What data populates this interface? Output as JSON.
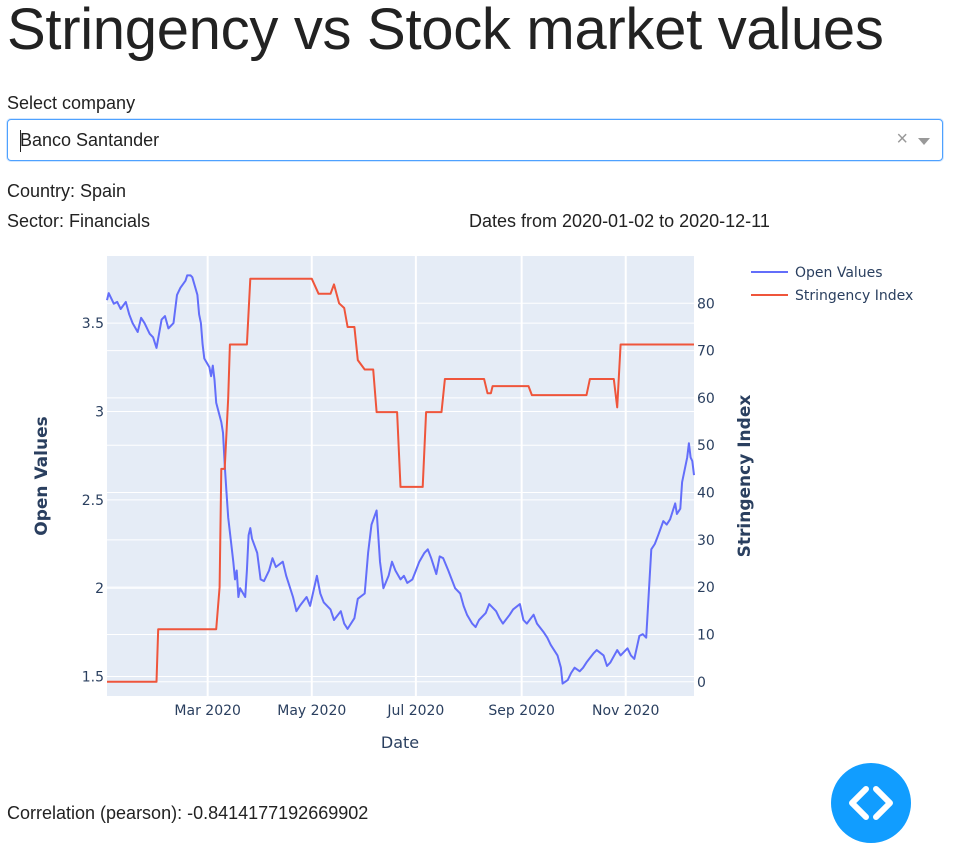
{
  "page": {
    "title": "Stringency vs Stock market values",
    "select_label": "Select company",
    "selected_company": "Banco Santander",
    "clear_glyph": "×",
    "country_line": "Country: Spain",
    "sector_line": "Sector: Financials",
    "dates_line": "Dates from 2020-01-02 to 2020-12-11",
    "correlation_line": "Correlation (pearson): -0.8414177192669902",
    "icons": {
      "clear": "clear-x-icon",
      "dropdown": "chevron-down-icon",
      "debug": "code-brackets-icon"
    },
    "colors": {
      "accent": "#119dff",
      "open_values": "#636efa",
      "stringency": "#ef553b",
      "plot_bg": "#e5ecf6"
    }
  },
  "chart_data": {
    "type": "line",
    "xlabel": "Date",
    "ylabel": "Open Values",
    "y2label": "Stringency Index",
    "x_range": [
      "2020-01-02",
      "2020-12-11"
    ],
    "x_ticks": [
      {
        "date": "2020-03-01",
        "label": "Mar 2020"
      },
      {
        "date": "2020-05-01",
        "label": "May 2020"
      },
      {
        "date": "2020-07-01",
        "label": "Jul 2020"
      },
      {
        "date": "2020-09-01",
        "label": "Sep 2020"
      },
      {
        "date": "2020-11-01",
        "label": "Nov 2020"
      }
    ],
    "ylim": [
      1.39,
      3.88
    ],
    "y_ticks": [
      {
        "value": 1.5,
        "label": "1.5"
      },
      {
        "value": 2,
        "label": "2"
      },
      {
        "value": 2.5,
        "label": "2.5"
      },
      {
        "value": 3,
        "label": "3"
      },
      {
        "value": 3.5,
        "label": "3.5"
      }
    ],
    "y2lim": [
      -3,
      90
    ],
    "y2_ticks": [
      {
        "value": 0,
        "label": "0"
      },
      {
        "value": 10,
        "label": "10"
      },
      {
        "value": 20,
        "label": "20"
      },
      {
        "value": 30,
        "label": "30"
      },
      {
        "value": 40,
        "label": "40"
      },
      {
        "value": 50,
        "label": "50"
      },
      {
        "value": 60,
        "label": "60"
      },
      {
        "value": 70,
        "label": "70"
      },
      {
        "value": 80,
        "label": "80"
      }
    ],
    "grid": true,
    "legend_position": "top-right",
    "series": [
      {
        "name": "Open Values",
        "axis": "y",
        "color": "#636efa",
        "points": [
          [
            "2020-01-02",
            3.63
          ],
          [
            "2020-01-03",
            3.67
          ],
          [
            "2020-01-06",
            3.61
          ],
          [
            "2020-01-08",
            3.62
          ],
          [
            "2020-01-10",
            3.58
          ],
          [
            "2020-01-13",
            3.62
          ],
          [
            "2020-01-15",
            3.55
          ],
          [
            "2020-01-17",
            3.5
          ],
          [
            "2020-01-20",
            3.45
          ],
          [
            "2020-01-22",
            3.53
          ],
          [
            "2020-01-24",
            3.5
          ],
          [
            "2020-01-27",
            3.44
          ],
          [
            "2020-01-29",
            3.42
          ],
          [
            "2020-01-31",
            3.36
          ],
          [
            "2020-02-03",
            3.52
          ],
          [
            "2020-02-05",
            3.54
          ],
          [
            "2020-02-07",
            3.47
          ],
          [
            "2020-02-10",
            3.5
          ],
          [
            "2020-02-12",
            3.66
          ],
          [
            "2020-02-14",
            3.7
          ],
          [
            "2020-02-17",
            3.74
          ],
          [
            "2020-02-18",
            3.77
          ],
          [
            "2020-02-20",
            3.77
          ],
          [
            "2020-02-21",
            3.76
          ],
          [
            "2020-02-24",
            3.66
          ],
          [
            "2020-02-25",
            3.55
          ],
          [
            "2020-02-26",
            3.5
          ],
          [
            "2020-02-27",
            3.38
          ],
          [
            "2020-02-28",
            3.3
          ],
          [
            "2020-03-02",
            3.25
          ],
          [
            "2020-03-03",
            3.2
          ],
          [
            "2020-03-04",
            3.26
          ],
          [
            "2020-03-05",
            3.18
          ],
          [
            "2020-03-06",
            3.05
          ],
          [
            "2020-03-09",
            2.94
          ],
          [
            "2020-03-10",
            2.88
          ],
          [
            "2020-03-11",
            2.7
          ],
          [
            "2020-03-12",
            2.55
          ],
          [
            "2020-03-13",
            2.4
          ],
          [
            "2020-03-16",
            2.15
          ],
          [
            "2020-03-17",
            2.05
          ],
          [
            "2020-03-18",
            2.1
          ],
          [
            "2020-03-19",
            1.95
          ],
          [
            "2020-03-20",
            2.0
          ],
          [
            "2020-03-23",
            1.95
          ],
          [
            "2020-03-24",
            2.1
          ],
          [
            "2020-03-25",
            2.3
          ],
          [
            "2020-03-26",
            2.34
          ],
          [
            "2020-03-27",
            2.28
          ],
          [
            "2020-03-30",
            2.2
          ],
          [
            "2020-04-01",
            2.05
          ],
          [
            "2020-04-03",
            2.04
          ],
          [
            "2020-04-06",
            2.1
          ],
          [
            "2020-04-08",
            2.17
          ],
          [
            "2020-04-10",
            2.12
          ],
          [
            "2020-04-14",
            2.15
          ],
          [
            "2020-04-16",
            2.07
          ],
          [
            "2020-04-17",
            2.04
          ],
          [
            "2020-04-20",
            1.95
          ],
          [
            "2020-04-22",
            1.87
          ],
          [
            "2020-04-24",
            1.9
          ],
          [
            "2020-04-28",
            1.95
          ],
          [
            "2020-04-30",
            1.9
          ],
          [
            "2020-05-04",
            2.07
          ],
          [
            "2020-05-06",
            1.97
          ],
          [
            "2020-05-08",
            1.92
          ],
          [
            "2020-05-12",
            1.88
          ],
          [
            "2020-05-14",
            1.82
          ],
          [
            "2020-05-18",
            1.87
          ],
          [
            "2020-05-20",
            1.8
          ],
          [
            "2020-05-22",
            1.77
          ],
          [
            "2020-05-26",
            1.83
          ],
          [
            "2020-05-28",
            1.94
          ],
          [
            "2020-06-01",
            1.97
          ],
          [
            "2020-06-03",
            2.2
          ],
          [
            "2020-06-05",
            2.36
          ],
          [
            "2020-06-08",
            2.44
          ],
          [
            "2020-06-10",
            2.15
          ],
          [
            "2020-06-12",
            2.0
          ],
          [
            "2020-06-15",
            2.07
          ],
          [
            "2020-06-17",
            2.15
          ],
          [
            "2020-06-19",
            2.1
          ],
          [
            "2020-06-22",
            2.05
          ],
          [
            "2020-06-24",
            2.07
          ],
          [
            "2020-06-26",
            2.03
          ],
          [
            "2020-06-29",
            2.05
          ],
          [
            "2020-07-01",
            2.1
          ],
          [
            "2020-07-03",
            2.15
          ],
          [
            "2020-07-06",
            2.2
          ],
          [
            "2020-07-08",
            2.22
          ],
          [
            "2020-07-10",
            2.17
          ],
          [
            "2020-07-13",
            2.08
          ],
          [
            "2020-07-15",
            2.18
          ],
          [
            "2020-07-17",
            2.17
          ],
          [
            "2020-07-20",
            2.1
          ],
          [
            "2020-07-22",
            2.05
          ],
          [
            "2020-07-24",
            2.0
          ],
          [
            "2020-07-27",
            1.97
          ],
          [
            "2020-07-29",
            1.9
          ],
          [
            "2020-07-31",
            1.85
          ],
          [
            "2020-08-03",
            1.8
          ],
          [
            "2020-08-05",
            1.78
          ],
          [
            "2020-08-07",
            1.82
          ],
          [
            "2020-08-11",
            1.86
          ],
          [
            "2020-08-13",
            1.91
          ],
          [
            "2020-08-17",
            1.87
          ],
          [
            "2020-08-19",
            1.83
          ],
          [
            "2020-08-21",
            1.8
          ],
          [
            "2020-08-25",
            1.85
          ],
          [
            "2020-08-27",
            1.88
          ],
          [
            "2020-08-31",
            1.91
          ],
          [
            "2020-09-02",
            1.82
          ],
          [
            "2020-09-04",
            1.8
          ],
          [
            "2020-09-08",
            1.85
          ],
          [
            "2020-09-10",
            1.8
          ],
          [
            "2020-09-14",
            1.75
          ],
          [
            "2020-09-16",
            1.72
          ],
          [
            "2020-09-18",
            1.68
          ],
          [
            "2020-09-22",
            1.62
          ],
          [
            "2020-09-24",
            1.55
          ],
          [
            "2020-09-25",
            1.46
          ],
          [
            "2020-09-28",
            1.48
          ],
          [
            "2020-09-30",
            1.52
          ],
          [
            "2020-10-02",
            1.55
          ],
          [
            "2020-10-05",
            1.53
          ],
          [
            "2020-10-07",
            1.55
          ],
          [
            "2020-10-09",
            1.58
          ],
          [
            "2020-10-13",
            1.63
          ],
          [
            "2020-10-15",
            1.65
          ],
          [
            "2020-10-19",
            1.62
          ],
          [
            "2020-10-21",
            1.56
          ],
          [
            "2020-10-23",
            1.58
          ],
          [
            "2020-10-27",
            1.65
          ],
          [
            "2020-10-29",
            1.62
          ],
          [
            "2020-11-02",
            1.66
          ],
          [
            "2020-11-04",
            1.62
          ],
          [
            "2020-11-06",
            1.6
          ],
          [
            "2020-11-09",
            1.73
          ],
          [
            "2020-11-11",
            1.74
          ],
          [
            "2020-11-13",
            1.72
          ],
          [
            "2020-11-16",
            2.22
          ],
          [
            "2020-11-18",
            2.25
          ],
          [
            "2020-11-20",
            2.3
          ],
          [
            "2020-11-23",
            2.38
          ],
          [
            "2020-11-25",
            2.36
          ],
          [
            "2020-11-27",
            2.39
          ],
          [
            "2020-11-30",
            2.48
          ],
          [
            "2020-12-01",
            2.42
          ],
          [
            "2020-12-03",
            2.45
          ],
          [
            "2020-12-04",
            2.6
          ],
          [
            "2020-12-07",
            2.74
          ],
          [
            "2020-12-08",
            2.82
          ],
          [
            "2020-12-09",
            2.74
          ],
          [
            "2020-12-10",
            2.72
          ],
          [
            "2020-12-11",
            2.64
          ]
        ]
      },
      {
        "name": "Stringency Index",
        "axis": "y2",
        "color": "#ef553b",
        "points": [
          [
            "2020-01-02",
            0
          ],
          [
            "2020-01-31",
            0
          ],
          [
            "2020-02-01",
            11.11
          ],
          [
            "2020-03-06",
            11.11
          ],
          [
            "2020-03-08",
            20
          ],
          [
            "2020-03-09",
            45
          ],
          [
            "2020-03-11",
            45
          ],
          [
            "2020-03-13",
            60
          ],
          [
            "2020-03-14",
            71.3
          ],
          [
            "2020-03-24",
            71.3
          ],
          [
            "2020-03-26",
            85.19
          ],
          [
            "2020-05-01",
            85.19
          ],
          [
            "2020-05-05",
            82
          ],
          [
            "2020-05-12",
            82
          ],
          [
            "2020-05-14",
            84
          ],
          [
            "2020-05-17",
            80
          ],
          [
            "2020-05-20",
            79
          ],
          [
            "2020-05-22",
            75
          ],
          [
            "2020-05-26",
            75
          ],
          [
            "2020-05-28",
            68
          ],
          [
            "2020-06-01",
            66
          ],
          [
            "2020-06-06",
            66
          ],
          [
            "2020-06-08",
            57
          ],
          [
            "2020-06-20",
            57
          ],
          [
            "2020-06-22",
            41.2
          ],
          [
            "2020-07-05",
            41.2
          ],
          [
            "2020-07-07",
            57
          ],
          [
            "2020-07-16",
            57
          ],
          [
            "2020-07-18",
            64
          ],
          [
            "2020-08-10",
            64
          ],
          [
            "2020-08-12",
            61
          ],
          [
            "2020-08-14",
            61
          ],
          [
            "2020-08-15",
            62.5
          ],
          [
            "2020-09-05",
            62.5
          ],
          [
            "2020-09-07",
            60.6
          ],
          [
            "2020-10-09",
            60.6
          ],
          [
            "2020-10-11",
            64
          ],
          [
            "2020-10-25",
            64
          ],
          [
            "2020-10-27",
            58
          ],
          [
            "2020-10-29",
            71.3
          ],
          [
            "2020-12-11",
            71.3
          ]
        ]
      }
    ]
  }
}
